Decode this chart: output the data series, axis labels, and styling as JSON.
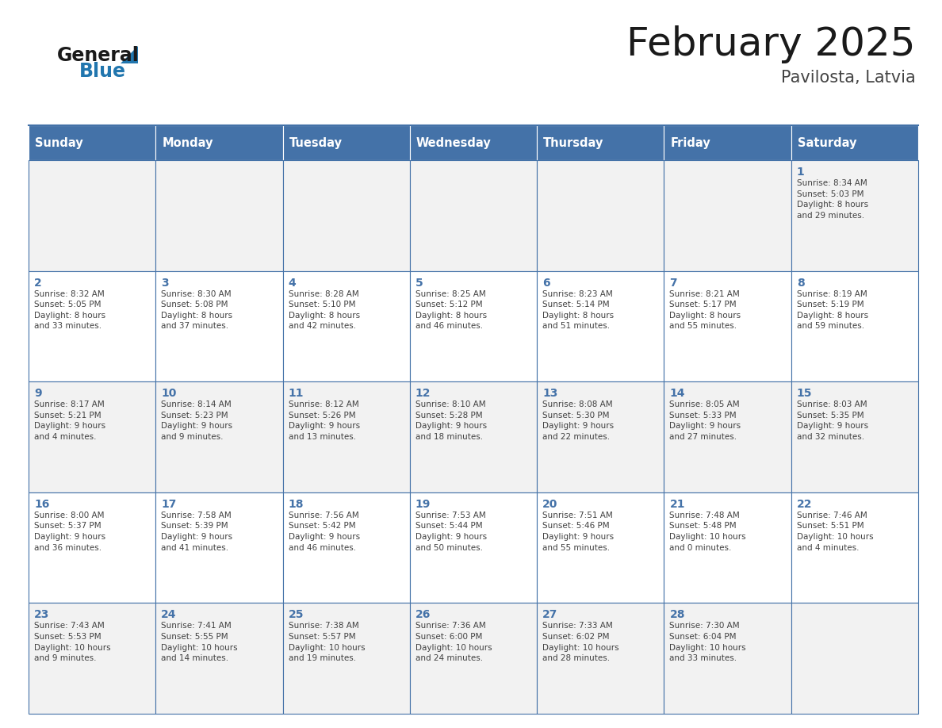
{
  "title": "February 2025",
  "subtitle": "Pavilosta, Latvia",
  "header_color": "#4472A8",
  "header_text_color": "#FFFFFF",
  "cell_bg_even": "#F2F2F2",
  "cell_bg_odd": "#FFFFFF",
  "cell_border_color": "#4472A8",
  "day_number_color": "#4472A8",
  "text_color": "#404040",
  "days_of_week": [
    "Sunday",
    "Monday",
    "Tuesday",
    "Wednesday",
    "Thursday",
    "Friday",
    "Saturday"
  ],
  "calendar_data": [
    [
      {
        "day": null,
        "info": null
      },
      {
        "day": null,
        "info": null
      },
      {
        "day": null,
        "info": null
      },
      {
        "day": null,
        "info": null
      },
      {
        "day": null,
        "info": null
      },
      {
        "day": null,
        "info": null
      },
      {
        "day": 1,
        "info": "Sunrise: 8:34 AM\nSunset: 5:03 PM\nDaylight: 8 hours\nand 29 minutes."
      }
    ],
    [
      {
        "day": 2,
        "info": "Sunrise: 8:32 AM\nSunset: 5:05 PM\nDaylight: 8 hours\nand 33 minutes."
      },
      {
        "day": 3,
        "info": "Sunrise: 8:30 AM\nSunset: 5:08 PM\nDaylight: 8 hours\nand 37 minutes."
      },
      {
        "day": 4,
        "info": "Sunrise: 8:28 AM\nSunset: 5:10 PM\nDaylight: 8 hours\nand 42 minutes."
      },
      {
        "day": 5,
        "info": "Sunrise: 8:25 AM\nSunset: 5:12 PM\nDaylight: 8 hours\nand 46 minutes."
      },
      {
        "day": 6,
        "info": "Sunrise: 8:23 AM\nSunset: 5:14 PM\nDaylight: 8 hours\nand 51 minutes."
      },
      {
        "day": 7,
        "info": "Sunrise: 8:21 AM\nSunset: 5:17 PM\nDaylight: 8 hours\nand 55 minutes."
      },
      {
        "day": 8,
        "info": "Sunrise: 8:19 AM\nSunset: 5:19 PM\nDaylight: 8 hours\nand 59 minutes."
      }
    ],
    [
      {
        "day": 9,
        "info": "Sunrise: 8:17 AM\nSunset: 5:21 PM\nDaylight: 9 hours\nand 4 minutes."
      },
      {
        "day": 10,
        "info": "Sunrise: 8:14 AM\nSunset: 5:23 PM\nDaylight: 9 hours\nand 9 minutes."
      },
      {
        "day": 11,
        "info": "Sunrise: 8:12 AM\nSunset: 5:26 PM\nDaylight: 9 hours\nand 13 minutes."
      },
      {
        "day": 12,
        "info": "Sunrise: 8:10 AM\nSunset: 5:28 PM\nDaylight: 9 hours\nand 18 minutes."
      },
      {
        "day": 13,
        "info": "Sunrise: 8:08 AM\nSunset: 5:30 PM\nDaylight: 9 hours\nand 22 minutes."
      },
      {
        "day": 14,
        "info": "Sunrise: 8:05 AM\nSunset: 5:33 PM\nDaylight: 9 hours\nand 27 minutes."
      },
      {
        "day": 15,
        "info": "Sunrise: 8:03 AM\nSunset: 5:35 PM\nDaylight: 9 hours\nand 32 minutes."
      }
    ],
    [
      {
        "day": 16,
        "info": "Sunrise: 8:00 AM\nSunset: 5:37 PM\nDaylight: 9 hours\nand 36 minutes."
      },
      {
        "day": 17,
        "info": "Sunrise: 7:58 AM\nSunset: 5:39 PM\nDaylight: 9 hours\nand 41 minutes."
      },
      {
        "day": 18,
        "info": "Sunrise: 7:56 AM\nSunset: 5:42 PM\nDaylight: 9 hours\nand 46 minutes."
      },
      {
        "day": 19,
        "info": "Sunrise: 7:53 AM\nSunset: 5:44 PM\nDaylight: 9 hours\nand 50 minutes."
      },
      {
        "day": 20,
        "info": "Sunrise: 7:51 AM\nSunset: 5:46 PM\nDaylight: 9 hours\nand 55 minutes."
      },
      {
        "day": 21,
        "info": "Sunrise: 7:48 AM\nSunset: 5:48 PM\nDaylight: 10 hours\nand 0 minutes."
      },
      {
        "day": 22,
        "info": "Sunrise: 7:46 AM\nSunset: 5:51 PM\nDaylight: 10 hours\nand 4 minutes."
      }
    ],
    [
      {
        "day": 23,
        "info": "Sunrise: 7:43 AM\nSunset: 5:53 PM\nDaylight: 10 hours\nand 9 minutes."
      },
      {
        "day": 24,
        "info": "Sunrise: 7:41 AM\nSunset: 5:55 PM\nDaylight: 10 hours\nand 14 minutes."
      },
      {
        "day": 25,
        "info": "Sunrise: 7:38 AM\nSunset: 5:57 PM\nDaylight: 10 hours\nand 19 minutes."
      },
      {
        "day": 26,
        "info": "Sunrise: 7:36 AM\nSunset: 6:00 PM\nDaylight: 10 hours\nand 24 minutes."
      },
      {
        "day": 27,
        "info": "Sunrise: 7:33 AM\nSunset: 6:02 PM\nDaylight: 10 hours\nand 28 minutes."
      },
      {
        "day": 28,
        "info": "Sunrise: 7:30 AM\nSunset: 6:04 PM\nDaylight: 10 hours\nand 33 minutes."
      },
      {
        "day": null,
        "info": null
      }
    ]
  ],
  "logo_color_general": "#1a1a1a",
  "logo_color_blue": "#2176AE",
  "logo_triangle_color": "#2176AE"
}
